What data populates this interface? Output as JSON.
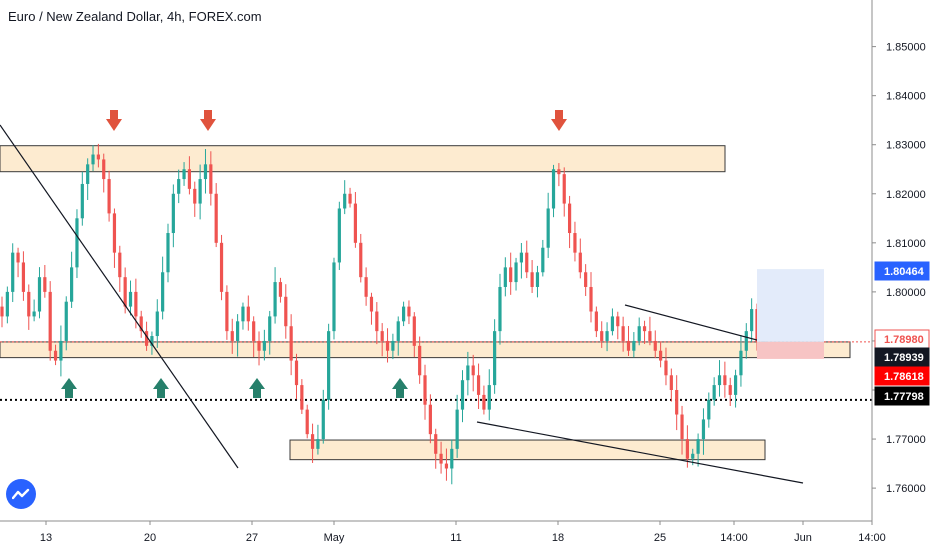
{
  "header": {
    "title": "Euro / New Zealand Dollar, 4h, FOREX.com"
  },
  "colors": {
    "up": "#26a69a",
    "down": "#ef5350",
    "zone_fill": "#fdebd0",
    "arrow_down": "#e0533d",
    "arrow_up": "#26806b",
    "price_blue": "#2962ff",
    "price_red": "#ff0000",
    "price_black": "#131722",
    "target_box": "#e3ebfa",
    "stop_box": "#f7c4c4"
  },
  "chart_data": {
    "type": "candlestick",
    "title": "Euro / New Zealand Dollar, 4h, FOREX.com",
    "ylim": [
      1.7535,
      1.8595
    ],
    "y_ticks": [
      "1.76000",
      "1.77000",
      "1.78000",
      "1.79000",
      "1.80000",
      "1.81000",
      "1.82000",
      "1.83000",
      "1.84000",
      "1.85000"
    ],
    "x_ticks": [
      "13",
      "20",
      "27",
      "May",
      "11",
      "18",
      "25",
      "14:00",
      "Jun",
      "14:00"
    ],
    "price_labels": [
      {
        "text": "1.80464",
        "value": 1.80464,
        "color": "#2962ff"
      },
      {
        "text": "1.78980",
        "value": 1.7898,
        "color": "#ef5350",
        "style": "outline"
      },
      {
        "text": "1.78939",
        "value": 1.78939,
        "color": "#131722"
      },
      {
        "text": "1.78618",
        "value": 1.78618,
        "color": "#ff0000"
      },
      {
        "text": "1.77798",
        "value": 1.77798,
        "color": "#000000"
      }
    ],
    "zones": [
      {
        "from": 1.8245,
        "to": 1.8298,
        "label": "upper resistance"
      },
      {
        "from": 1.7866,
        "to": 1.7898,
        "label": "middle support"
      },
      {
        "from": 1.7658,
        "to": 1.7698,
        "label": "lower support"
      }
    ],
    "horizontal_lines": [
      {
        "value": 1.7898,
        "style": "dotted",
        "color": "#ef5350"
      },
      {
        "value": 1.77798,
        "style": "dotted",
        "color": "#000000"
      }
    ],
    "close_path": [
      1.795,
      1.8,
      1.808,
      1.806,
      1.8,
      1.795,
      1.796,
      1.803,
      1.8,
      1.788,
      1.786,
      1.79,
      1.798,
      1.805,
      1.815,
      1.822,
      1.826,
      1.828,
      1.827,
      1.823,
      1.816,
      1.808,
      1.803,
      1.797,
      1.8,
      1.795,
      1.792,
      1.789,
      1.791,
      1.796,
      1.804,
      1.812,
      1.82,
      1.823,
      1.825,
      1.821,
      1.818,
      1.823,
      1.826,
      1.82,
      1.81,
      1.8,
      1.792,
      1.79,
      1.794,
      1.797,
      1.794,
      1.79,
      1.788,
      1.79,
      1.795,
      1.802,
      1.799,
      1.793,
      1.786,
      1.781,
      1.776,
      1.771,
      1.768,
      1.77,
      1.778,
      1.792,
      1.806,
      1.817,
      1.82,
      1.818,
      1.81,
      1.803,
      1.799,
      1.796,
      1.792,
      1.79,
      1.788,
      1.79,
      1.794,
      1.797,
      1.795,
      1.789,
      1.783,
      1.777,
      1.771,
      1.767,
      1.765,
      1.764,
      1.768,
      1.776,
      1.782,
      1.785,
      1.783,
      1.779,
      1.776,
      1.781,
      1.792,
      1.801,
      1.805,
      1.802,
      1.806,
      1.808,
      1.804,
      1.801,
      1.804,
      1.809,
      1.817,
      1.825,
      1.824,
      1.818,
      1.812,
      1.808,
      1.804,
      1.801,
      1.796,
      1.792,
      1.79,
      1.792,
      1.795,
      1.793,
      1.79,
      1.788,
      1.79,
      1.793,
      1.792,
      1.79,
      1.788,
      1.786,
      1.783,
      1.78,
      1.775,
      1.77,
      1.766,
      1.767,
      1.77,
      1.774,
      1.778,
      1.781,
      1.783,
      1.781,
      1.779,
      1.783,
      1.788,
      1.792,
      1.7965,
      1.7898
    ],
    "annotations": {
      "down_arrows": [
        "swing high 1",
        "swing high 2",
        "swing high 3"
      ],
      "up_arrows": [
        "swing low 1",
        "swing low 2",
        "swing low 3",
        "swing low 4"
      ],
      "trendlines": [
        "descending line",
        "falling wedge upper",
        "falling wedge lower"
      ],
      "position_tool": {
        "entry": 1.7898,
        "target": 1.80464,
        "stop": 1.78618
      }
    }
  }
}
